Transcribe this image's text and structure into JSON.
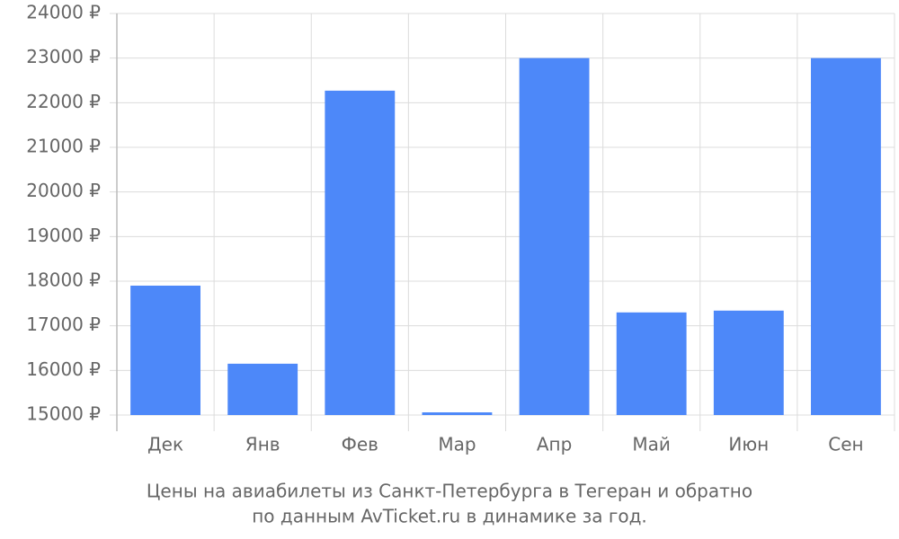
{
  "chart_data": {
    "type": "bar",
    "title": "Цены на авиабилеты из Санкт-Петербурга в Тегеран и обратно",
    "subtitle": "по данным AvTicket.ru в динамике за год.",
    "categories": [
      "Дек",
      "Янв",
      "Фев",
      "Мар",
      "Апр",
      "Май",
      "Июн",
      "Сен"
    ],
    "values": [
      17900,
      16150,
      22270,
      15060,
      23000,
      17300,
      17340,
      23000
    ],
    "color": "#4d88f9",
    "ylim": [
      15000,
      24000
    ],
    "yticks": [
      {
        "value": 15000,
        "label": "15000 ₽"
      },
      {
        "value": 16000,
        "label": "16000 ₽"
      },
      {
        "value": 17000,
        "label": "17000 ₽"
      },
      {
        "value": 18000,
        "label": "18000 ₽"
      },
      {
        "value": 19000,
        "label": "19000 ₽"
      },
      {
        "value": 20000,
        "label": "20000 ₽"
      },
      {
        "value": 21000,
        "label": "21000 ₽"
      },
      {
        "value": 22000,
        "label": "22000 ₽"
      },
      {
        "value": 23000,
        "label": "23000 ₽"
      },
      {
        "value": 24000,
        "label": "24000 ₽"
      }
    ],
    "grid": true
  }
}
